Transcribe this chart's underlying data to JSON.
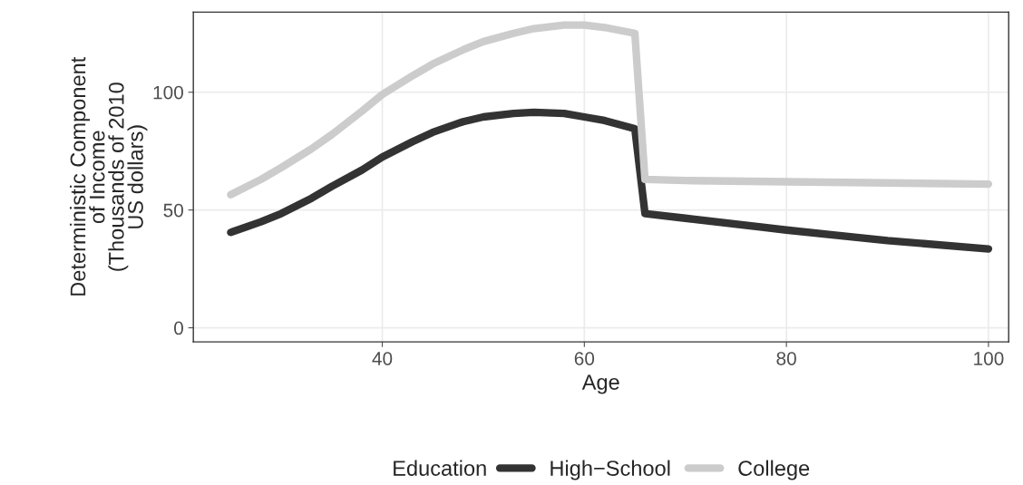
{
  "chart_data": {
    "type": "line",
    "xlabel": "Age",
    "ylabel": "Deterministic Component\nof Income\n(Thousands of 2010\nUS dollars)",
    "legend_title": "Education",
    "legend": "bottom",
    "grid": true,
    "line_style": "solid",
    "xlim": [
      21.3,
      102
    ],
    "ylim": [
      -6,
      134
    ],
    "xticks": [
      40,
      60,
      80,
      100
    ],
    "yticks": [
      0,
      50,
      100
    ],
    "series": [
      {
        "name": "High−School",
        "color": "#333333",
        "x": [
          25,
          28,
          30,
          33,
          35,
          38,
          40,
          43,
          45,
          48,
          50,
          53,
          55,
          58,
          60,
          62,
          65,
          66,
          70,
          80,
          90,
          100
        ],
        "values": [
          40.5,
          45,
          48.5,
          55,
          60,
          67,
          72.5,
          79,
          83,
          87.5,
          89.5,
          91,
          91.5,
          91,
          89.5,
          88,
          84.5,
          48.5,
          46.5,
          41.5,
          37,
          33.5
        ]
      },
      {
        "name": "College",
        "color": "#cccccc",
        "x": [
          25,
          28,
          30,
          33,
          35,
          38,
          40,
          43,
          45,
          48,
          50,
          53,
          55,
          58,
          60,
          62,
          65,
          66,
          70,
          80,
          90,
          100
        ],
        "values": [
          56.5,
          63,
          68,
          76,
          82,
          92,
          99,
          107,
          112,
          118,
          121.5,
          125,
          127,
          128.5,
          128.5,
          127.5,
          125,
          63,
          62.5,
          62,
          61.5,
          61
        ]
      }
    ]
  }
}
